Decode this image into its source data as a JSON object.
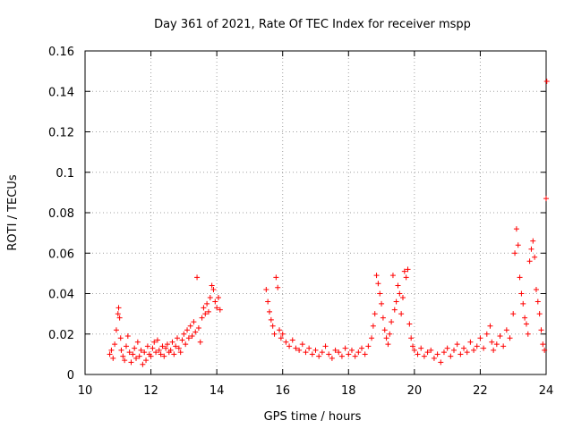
{
  "chart_data": {
    "type": "scatter",
    "title": "Day 361 of 2021, Rate Of TEC Index for receiver mspp",
    "xlabel": "GPS time / hours",
    "ylabel": "ROTI / TECUs",
    "xlim": [
      10,
      24
    ],
    "ylim": [
      0,
      0.16
    ],
    "xticks": [
      10,
      12,
      14,
      16,
      18,
      20,
      22,
      24
    ],
    "xtick_labels": [
      "10",
      "12",
      "14",
      "16",
      "18",
      "20",
      "22",
      "24"
    ],
    "yticks": [
      0,
      0.02,
      0.04,
      0.06,
      0.08,
      0.1,
      0.12,
      0.14,
      0.16
    ],
    "ytick_labels": [
      "0",
      "0.02",
      "0.04",
      "0.06",
      "0.08",
      "0.1",
      "0.12",
      "0.14",
      "0.16"
    ],
    "grid": true,
    "marker": "+",
    "color": "#ff0000",
    "series": [
      {
        "name": "ROTI",
        "points": [
          [
            10.75,
            0.01
          ],
          [
            10.8,
            0.012
          ],
          [
            10.85,
            0.008
          ],
          [
            10.9,
            0.015
          ],
          [
            10.95,
            0.022
          ],
          [
            11.0,
            0.03
          ],
          [
            11.02,
            0.033
          ],
          [
            11.05,
            0.028
          ],
          [
            11.08,
            0.018
          ],
          [
            11.1,
            0.012
          ],
          [
            11.15,
            0.009
          ],
          [
            11.2,
            0.007
          ],
          [
            11.25,
            0.014
          ],
          [
            11.3,
            0.019
          ],
          [
            11.35,
            0.011
          ],
          [
            11.4,
            0.006
          ],
          [
            11.45,
            0.01
          ],
          [
            11.5,
            0.013
          ],
          [
            11.55,
            0.008
          ],
          [
            11.6,
            0.016
          ],
          [
            11.65,
            0.009
          ],
          [
            11.7,
            0.012
          ],
          [
            11.75,
            0.005
          ],
          [
            11.8,
            0.011
          ],
          [
            11.85,
            0.007
          ],
          [
            11.9,
            0.014
          ],
          [
            11.95,
            0.01
          ],
          [
            12.0,
            0.009
          ],
          [
            12.05,
            0.013
          ],
          [
            12.1,
            0.016
          ],
          [
            12.15,
            0.011
          ],
          [
            12.2,
            0.017
          ],
          [
            12.25,
            0.012
          ],
          [
            12.3,
            0.01
          ],
          [
            12.35,
            0.014
          ],
          [
            12.4,
            0.009
          ],
          [
            12.45,
            0.013
          ],
          [
            12.5,
            0.015
          ],
          [
            12.55,
            0.011
          ],
          [
            12.6,
            0.012
          ],
          [
            12.65,
            0.016
          ],
          [
            12.7,
            0.01
          ],
          [
            12.75,
            0.014
          ],
          [
            12.8,
            0.018
          ],
          [
            12.85,
            0.013
          ],
          [
            12.9,
            0.011
          ],
          [
            12.95,
            0.017
          ],
          [
            13.0,
            0.02
          ],
          [
            13.05,
            0.015
          ],
          [
            13.1,
            0.022
          ],
          [
            13.15,
            0.018
          ],
          [
            13.2,
            0.024
          ],
          [
            13.25,
            0.019
          ],
          [
            13.3,
            0.026
          ],
          [
            13.35,
            0.021
          ],
          [
            13.4,
            0.048
          ],
          [
            13.45,
            0.023
          ],
          [
            13.5,
            0.016
          ],
          [
            13.55,
            0.028
          ],
          [
            13.6,
            0.033
          ],
          [
            13.65,
            0.03
          ],
          [
            13.7,
            0.035
          ],
          [
            13.75,
            0.031
          ],
          [
            13.8,
            0.038
          ],
          [
            13.85,
            0.044
          ],
          [
            13.9,
            0.042
          ],
          [
            13.95,
            0.036
          ],
          [
            14.0,
            0.033
          ],
          [
            14.05,
            0.038
          ],
          [
            14.1,
            0.032
          ],
          [
            15.5,
            0.042
          ],
          [
            15.55,
            0.036
          ],
          [
            15.6,
            0.031
          ],
          [
            15.65,
            0.027
          ],
          [
            15.7,
            0.024
          ],
          [
            15.75,
            0.02
          ],
          [
            15.8,
            0.048
          ],
          [
            15.85,
            0.043
          ],
          [
            15.9,
            0.022
          ],
          [
            15.95,
            0.018
          ],
          [
            16.0,
            0.02
          ],
          [
            16.1,
            0.016
          ],
          [
            16.2,
            0.014
          ],
          [
            16.3,
            0.017
          ],
          [
            16.4,
            0.013
          ],
          [
            16.5,
            0.012
          ],
          [
            16.6,
            0.015
          ],
          [
            16.7,
            0.011
          ],
          [
            16.8,
            0.013
          ],
          [
            16.9,
            0.01
          ],
          [
            17.0,
            0.012
          ],
          [
            17.1,
            0.009
          ],
          [
            17.2,
            0.011
          ],
          [
            17.3,
            0.014
          ],
          [
            17.4,
            0.01
          ],
          [
            17.5,
            0.008
          ],
          [
            17.6,
            0.012
          ],
          [
            17.7,
            0.011
          ],
          [
            17.8,
            0.009
          ],
          [
            17.9,
            0.013
          ],
          [
            18.0,
            0.01
          ],
          [
            18.1,
            0.012
          ],
          [
            18.2,
            0.009
          ],
          [
            18.3,
            0.011
          ],
          [
            18.4,
            0.013
          ],
          [
            18.5,
            0.01
          ],
          [
            18.6,
            0.014
          ],
          [
            18.7,
            0.018
          ],
          [
            18.75,
            0.024
          ],
          [
            18.8,
            0.03
          ],
          [
            18.85,
            0.049
          ],
          [
            18.9,
            0.045
          ],
          [
            18.95,
            0.04
          ],
          [
            19.0,
            0.035
          ],
          [
            19.05,
            0.028
          ],
          [
            19.1,
            0.022
          ],
          [
            19.15,
            0.018
          ],
          [
            19.2,
            0.015
          ],
          [
            19.25,
            0.02
          ],
          [
            19.3,
            0.026
          ],
          [
            19.35,
            0.049
          ],
          [
            19.4,
            0.032
          ],
          [
            19.45,
            0.036
          ],
          [
            19.5,
            0.044
          ],
          [
            19.55,
            0.04
          ],
          [
            19.6,
            0.03
          ],
          [
            19.65,
            0.038
          ],
          [
            19.7,
            0.051
          ],
          [
            19.75,
            0.048
          ],
          [
            19.8,
            0.052
          ],
          [
            19.85,
            0.025
          ],
          [
            19.9,
            0.018
          ],
          [
            19.95,
            0.014
          ],
          [
            20.0,
            0.012
          ],
          [
            20.1,
            0.01
          ],
          [
            20.2,
            0.013
          ],
          [
            20.3,
            0.009
          ],
          [
            20.4,
            0.011
          ],
          [
            20.5,
            0.012
          ],
          [
            20.6,
            0.008
          ],
          [
            20.7,
            0.01
          ],
          [
            20.8,
            0.006
          ],
          [
            20.9,
            0.011
          ],
          [
            21.0,
            0.013
          ],
          [
            21.1,
            0.009
          ],
          [
            21.2,
            0.012
          ],
          [
            21.3,
            0.015
          ],
          [
            21.4,
            0.01
          ],
          [
            21.5,
            0.013
          ],
          [
            21.6,
            0.011
          ],
          [
            21.7,
            0.016
          ],
          [
            21.8,
            0.012
          ],
          [
            21.9,
            0.014
          ],
          [
            22.0,
            0.018
          ],
          [
            22.1,
            0.013
          ],
          [
            22.2,
            0.02
          ],
          [
            22.3,
            0.024
          ],
          [
            22.35,
            0.016
          ],
          [
            22.4,
            0.012
          ],
          [
            22.5,
            0.015
          ],
          [
            22.6,
            0.019
          ],
          [
            22.7,
            0.014
          ],
          [
            22.8,
            0.022
          ],
          [
            22.9,
            0.018
          ],
          [
            23.0,
            0.03
          ],
          [
            23.05,
            0.06
          ],
          [
            23.1,
            0.072
          ],
          [
            23.15,
            0.064
          ],
          [
            23.2,
            0.048
          ],
          [
            23.25,
            0.04
          ],
          [
            23.3,
            0.035
          ],
          [
            23.35,
            0.028
          ],
          [
            23.4,
            0.025
          ],
          [
            23.45,
            0.02
          ],
          [
            23.5,
            0.056
          ],
          [
            23.55,
            0.062
          ],
          [
            23.6,
            0.066
          ],
          [
            23.65,
            0.058
          ],
          [
            23.7,
            0.042
          ],
          [
            23.75,
            0.036
          ],
          [
            23.8,
            0.03
          ],
          [
            23.85,
            0.022
          ],
          [
            23.9,
            0.015
          ],
          [
            23.95,
            0.012
          ],
          [
            24.0,
            0.087
          ],
          [
            24.02,
            0.145
          ]
        ]
      }
    ]
  }
}
